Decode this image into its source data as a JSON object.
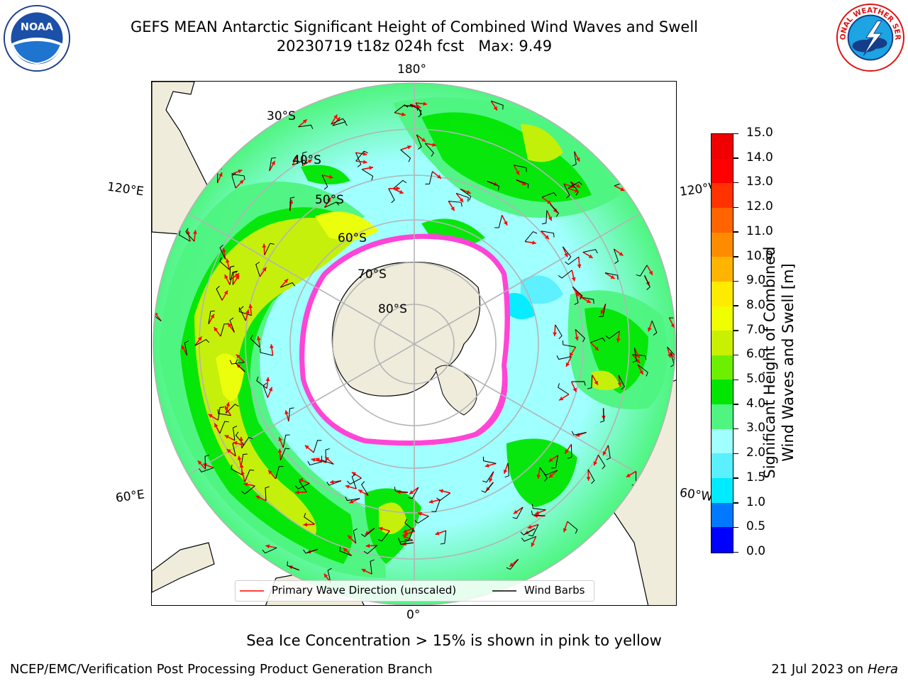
{
  "title": {
    "line1": "GEFS MEAN Antarctic Significant Height of Combined Wind Waves and Swell",
    "line2": "20230719 t18z 024h fcst   Max: 9.49"
  },
  "logos": {
    "noaa_text": "NOAA",
    "nws_text": "NATIONAL WEATHER SERVICE"
  },
  "map": {
    "projection": "south-polar-stereographic",
    "latitude_labels": [
      "30°S",
      "40°S",
      "50°S",
      "60°S",
      "70°S",
      "80°S"
    ],
    "longitude_labels": {
      "top": "180°",
      "bottom": "0°",
      "upper_left": "120°E",
      "upper_right": "120°W",
      "lower_left": "60°E",
      "lower_right": "60°W"
    },
    "colors": {
      "land": "#efecdc",
      "sea_ice": "#ffffff",
      "ice_edge": "#ff44d6",
      "grid": "#b4b4b4",
      "wave_arrow": "#ff0000",
      "barb": "#000000"
    }
  },
  "legend": {
    "items": [
      {
        "label": "Primary Wave Direction (unscaled)",
        "color": "#ff0000"
      },
      {
        "label": "Wind Barbs",
        "color": "#000000"
      }
    ]
  },
  "colorbar": {
    "label_line1": "Significant Height of Combined",
    "label_line2": "Wind Waves and Swell [m]",
    "ticks": [
      "0.0",
      "0.5",
      "1.0",
      "1.5",
      "2.0",
      "3.0",
      "4.0",
      "5.0",
      "6.0",
      "7.0",
      "8.0",
      "9.0",
      "10.0",
      "11.0",
      "12.0",
      "13.0",
      "14.0",
      "15.0"
    ],
    "colors": [
      "#0000ff",
      "#0078ff",
      "#00ebff",
      "#5af0ff",
      "#a0ffff",
      "#4ff580",
      "#00e600",
      "#6cf000",
      "#c8f000",
      "#f0ff00",
      "#ffeb00",
      "#ffb400",
      "#ff8c00",
      "#ff6400",
      "#ff3200",
      "#ff0000",
      "#f00000"
    ]
  },
  "footer": {
    "note": "Sea Ice Concentration > 15% is shown in pink to yellow",
    "left": "NCEP/EMC/Verification Post Processing Product Generation Branch",
    "right_prefix": "21 Jul 2023 on ",
    "right_machine": "Hera"
  }
}
